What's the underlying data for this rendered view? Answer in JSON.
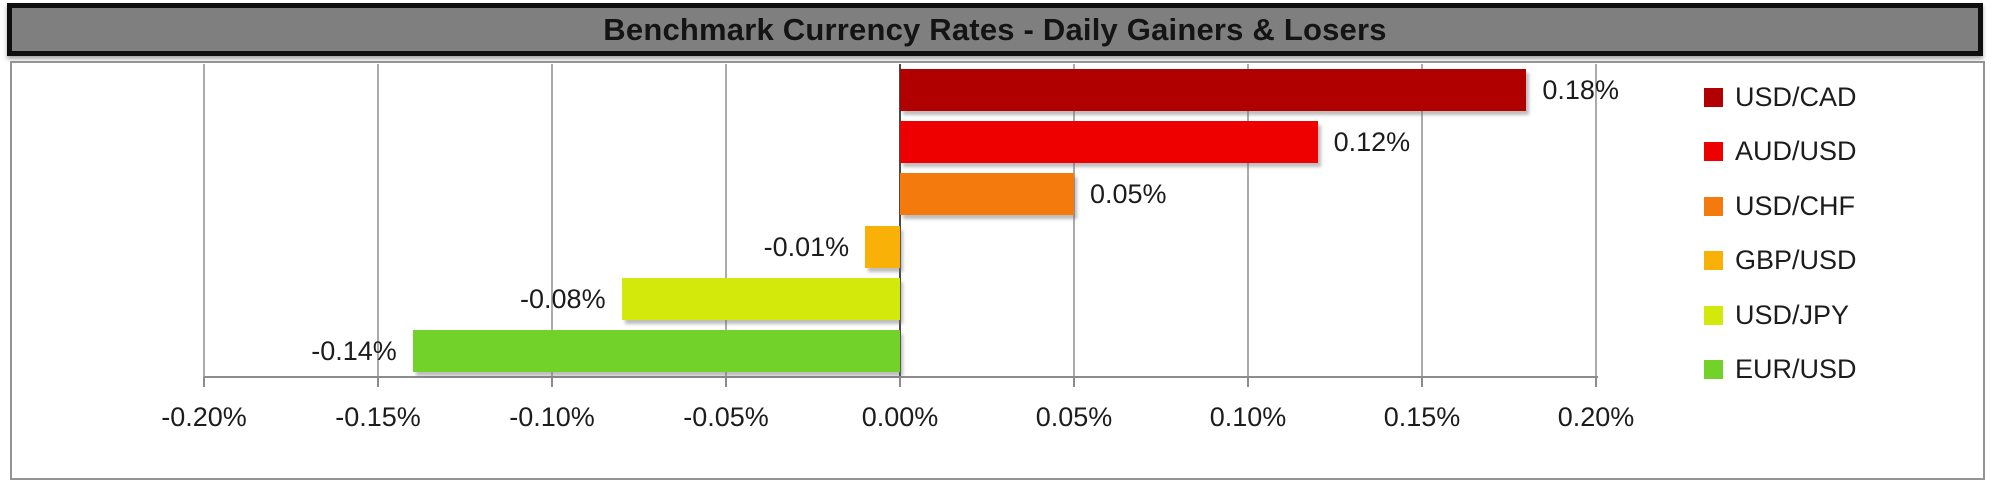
{
  "window": {
    "title": "Benchmark Currency Rates - Daily Gainers & Losers"
  },
  "chart_data": {
    "type": "bar",
    "orientation": "horizontal",
    "title": "Benchmark Currency Rates - Daily Gainers & Losers",
    "categories": [
      "USD/CAD",
      "AUD/USD",
      "USD/CHF",
      "GBP/USD",
      "USD/JPY",
      "EUR/USD"
    ],
    "values": [
      0.18,
      0.12,
      0.05,
      -0.01,
      -0.08,
      -0.14
    ],
    "value_unit": "percent",
    "data_labels": [
      "0.18%",
      "0.12%",
      "0.05%",
      "-0.01%",
      "-0.08%",
      "-0.14%"
    ],
    "bar_colors": [
      "#B00000",
      "#EE0000",
      "#F57A0D",
      "#F9B007",
      "#D3E80B",
      "#73D229"
    ],
    "x_axis": {
      "min": -0.2,
      "max": 0.2,
      "tick_interval": 0.05,
      "tick_labels": [
        "-0.20%",
        "-0.15%",
        "-0.10%",
        "-0.05%",
        "0.00%",
        "0.05%",
        "0.10%",
        "0.15%",
        "0.20%"
      ]
    },
    "legend": {
      "position": "right",
      "entries": [
        {
          "label": "USD/CAD",
          "color": "#B00000"
        },
        {
          "label": "AUD/USD",
          "color": "#EE0000"
        },
        {
          "label": "USD/CHF",
          "color": "#F57A0D"
        },
        {
          "label": "GBP/USD",
          "color": "#F9B007"
        },
        {
          "label": "USD/JPY",
          "color": "#D3E80B"
        },
        {
          "label": "EUR/USD",
          "color": "#73D229"
        }
      ]
    },
    "grid": true
  },
  "colors": {
    "title_bar_bg": "#7F7F7F",
    "title_bar_border": "#0F0F0F",
    "chart_border": "#949494",
    "gridline": "#ABABAB",
    "zero_line": "#4A4A4A",
    "axis_line": "#8C8C8C",
    "text": "#1C1C1C",
    "plot_bg": "#FFFFFF"
  }
}
